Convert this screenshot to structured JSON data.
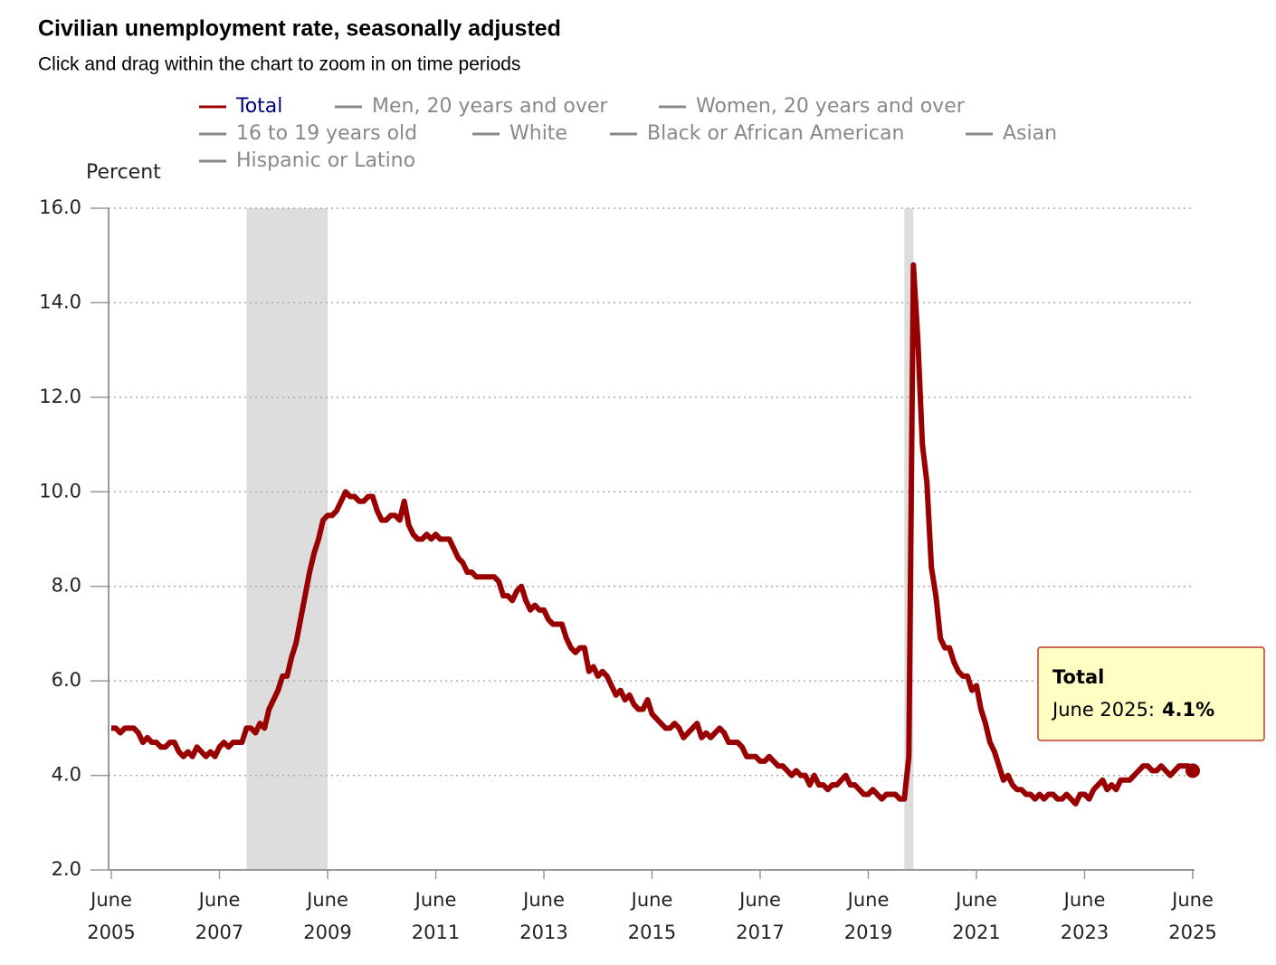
{
  "chart_data": {
    "type": "line",
    "title": "Civilian unemployment rate, seasonally adjusted",
    "subtitle": "Click and drag within the chart to zoom in on time periods",
    "y_label": "Percent",
    "x": [
      "2005-06",
      "2005-07",
      "2005-08",
      "2005-09",
      "2005-10",
      "2005-11",
      "2005-12",
      "2006-01",
      "2006-02",
      "2006-03",
      "2006-04",
      "2006-05",
      "2006-06",
      "2006-07",
      "2006-08",
      "2006-09",
      "2006-10",
      "2006-11",
      "2006-12",
      "2007-01",
      "2007-02",
      "2007-03",
      "2007-04",
      "2007-05",
      "2007-06",
      "2007-07",
      "2007-08",
      "2007-09",
      "2007-10",
      "2007-11",
      "2007-12",
      "2008-01",
      "2008-02",
      "2008-03",
      "2008-04",
      "2008-05",
      "2008-06",
      "2008-07",
      "2008-08",
      "2008-09",
      "2008-10",
      "2008-11",
      "2008-12",
      "2009-01",
      "2009-02",
      "2009-03",
      "2009-04",
      "2009-05",
      "2009-06",
      "2009-07",
      "2009-08",
      "2009-09",
      "2009-10",
      "2009-11",
      "2009-12",
      "2010-01",
      "2010-02",
      "2010-03",
      "2010-04",
      "2010-05",
      "2010-06",
      "2010-07",
      "2010-08",
      "2010-09",
      "2010-10",
      "2010-11",
      "2010-12",
      "2011-01",
      "2011-02",
      "2011-03",
      "2011-04",
      "2011-05",
      "2011-06",
      "2011-07",
      "2011-08",
      "2011-09",
      "2011-10",
      "2011-11",
      "2011-12",
      "2012-01",
      "2012-02",
      "2012-03",
      "2012-04",
      "2012-05",
      "2012-06",
      "2012-07",
      "2012-08",
      "2012-09",
      "2012-10",
      "2012-11",
      "2012-12",
      "2013-01",
      "2013-02",
      "2013-03",
      "2013-04",
      "2013-05",
      "2013-06",
      "2013-07",
      "2013-08",
      "2013-09",
      "2013-10",
      "2013-11",
      "2013-12",
      "2014-01",
      "2014-02",
      "2014-03",
      "2014-04",
      "2014-05",
      "2014-06",
      "2014-07",
      "2014-08",
      "2014-09",
      "2014-10",
      "2014-11",
      "2014-12",
      "2015-01",
      "2015-02",
      "2015-03",
      "2015-04",
      "2015-05",
      "2015-06",
      "2015-07",
      "2015-08",
      "2015-09",
      "2015-10",
      "2015-11",
      "2015-12",
      "2016-01",
      "2016-02",
      "2016-03",
      "2016-04",
      "2016-05",
      "2016-06",
      "2016-07",
      "2016-08",
      "2016-09",
      "2016-10",
      "2016-11",
      "2016-12",
      "2017-01",
      "2017-02",
      "2017-03",
      "2017-04",
      "2017-05",
      "2017-06",
      "2017-07",
      "2017-08",
      "2017-09",
      "2017-10",
      "2017-11",
      "2017-12",
      "2018-01",
      "2018-02",
      "2018-03",
      "2018-04",
      "2018-05",
      "2018-06",
      "2018-07",
      "2018-08",
      "2018-09",
      "2018-10",
      "2018-11",
      "2018-12",
      "2019-01",
      "2019-02",
      "2019-03",
      "2019-04",
      "2019-05",
      "2019-06",
      "2019-07",
      "2019-08",
      "2019-09",
      "2019-10",
      "2019-11",
      "2019-12",
      "2020-01",
      "2020-02",
      "2020-03",
      "2020-04",
      "2020-05",
      "2020-06",
      "2020-07",
      "2020-08",
      "2020-09",
      "2020-10",
      "2020-11",
      "2020-12",
      "2021-01",
      "2021-02",
      "2021-03",
      "2021-04",
      "2021-05",
      "2021-06",
      "2021-07",
      "2021-08",
      "2021-09",
      "2021-10",
      "2021-11",
      "2021-12",
      "2022-01",
      "2022-02",
      "2022-03",
      "2022-04",
      "2022-05",
      "2022-06",
      "2022-07",
      "2022-08",
      "2022-09",
      "2022-10",
      "2022-11",
      "2022-12",
      "2023-01",
      "2023-02",
      "2023-03",
      "2023-04",
      "2023-05",
      "2023-06",
      "2023-07",
      "2023-08",
      "2023-09",
      "2023-10",
      "2023-11",
      "2023-12",
      "2024-01",
      "2024-02",
      "2024-03",
      "2024-04",
      "2024-05",
      "2024-06",
      "2024-07",
      "2024-08",
      "2024-09",
      "2024-10",
      "2024-11",
      "2024-12",
      "2025-01",
      "2025-02",
      "2025-03",
      "2025-04",
      "2025-05",
      "2025-06"
    ],
    "series": [
      {
        "name": "Total",
        "color": "#990000",
        "values": [
          5.0,
          5.0,
          4.9,
          5.0,
          5.0,
          5.0,
          4.9,
          4.7,
          4.8,
          4.7,
          4.7,
          4.6,
          4.6,
          4.7,
          4.7,
          4.5,
          4.4,
          4.5,
          4.4,
          4.6,
          4.5,
          4.4,
          4.5,
          4.4,
          4.6,
          4.7,
          4.6,
          4.7,
          4.7,
          4.7,
          5.0,
          5.0,
          4.9,
          5.1,
          5.0,
          5.4,
          5.6,
          5.8,
          6.1,
          6.1,
          6.5,
          6.8,
          7.3,
          7.8,
          8.3,
          8.7,
          9.0,
          9.4,
          9.5,
          9.5,
          9.6,
          9.8,
          10.0,
          9.9,
          9.9,
          9.8,
          9.8,
          9.9,
          9.9,
          9.6,
          9.4,
          9.4,
          9.5,
          9.5,
          9.4,
          9.8,
          9.3,
          9.1,
          9.0,
          9.0,
          9.1,
          9.0,
          9.1,
          9.0,
          9.0,
          9.0,
          8.8,
          8.6,
          8.5,
          8.3,
          8.3,
          8.2,
          8.2,
          8.2,
          8.2,
          8.2,
          8.1,
          7.8,
          7.8,
          7.7,
          7.9,
          8.0,
          7.7,
          7.5,
          7.6,
          7.5,
          7.5,
          7.3,
          7.2,
          7.2,
          7.2,
          6.9,
          6.7,
          6.6,
          6.7,
          6.7,
          6.2,
          6.3,
          6.1,
          6.2,
          6.1,
          5.9,
          5.7,
          5.8,
          5.6,
          5.7,
          5.5,
          5.4,
          5.4,
          5.6,
          5.3,
          5.2,
          5.1,
          5.0,
          5.0,
          5.1,
          5.0,
          4.8,
          4.9,
          5.0,
          5.1,
          4.8,
          4.9,
          4.8,
          4.9,
          5.0,
          4.9,
          4.7,
          4.7,
          4.7,
          4.6,
          4.4,
          4.4,
          4.4,
          4.3,
          4.3,
          4.4,
          4.3,
          4.2,
          4.2,
          4.1,
          4.0,
          4.1,
          4.0,
          4.0,
          3.8,
          4.0,
          3.8,
          3.8,
          3.7,
          3.8,
          3.8,
          3.9,
          4.0,
          3.8,
          3.8,
          3.7,
          3.6,
          3.6,
          3.7,
          3.6,
          3.5,
          3.6,
          3.6,
          3.6,
          3.5,
          3.5,
          4.4,
          14.8,
          13.2,
          11.0,
          10.2,
          8.4,
          7.8,
          6.9,
          6.7,
          6.7,
          6.4,
          6.2,
          6.1,
          6.1,
          5.8,
          5.9,
          5.4,
          5.1,
          4.7,
          4.5,
          4.2,
          3.9,
          4.0,
          3.8,
          3.7,
          3.7,
          3.6,
          3.6,
          3.5,
          3.6,
          3.5,
          3.6,
          3.6,
          3.5,
          3.5,
          3.6,
          3.5,
          3.4,
          3.6,
          3.6,
          3.5,
          3.7,
          3.8,
          3.9,
          3.7,
          3.8,
          3.7,
          3.9,
          3.9,
          3.9,
          4.0,
          4.1,
          4.2,
          4.2,
          4.1,
          4.1,
          4.2,
          4.1,
          4.0,
          4.1,
          4.2,
          4.2,
          4.2,
          4.1
        ]
      }
    ],
    "hidden_series": [
      {
        "name": "Men, 20 years and over",
        "color": "#888888"
      },
      {
        "name": "Women, 20 years and over",
        "color": "#888888"
      },
      {
        "name": "16 to 19 years old",
        "color": "#888888"
      },
      {
        "name": "White",
        "color": "#888888"
      },
      {
        "name": "Black or African American",
        "color": "#888888"
      },
      {
        "name": "Asian",
        "color": "#888888"
      },
      {
        "name": "Hispanic or Latino",
        "color": "#888888"
      }
    ],
    "legend_text_color": "#000080",
    "recessions": [
      [
        "2007-12",
        "2009-06"
      ],
      [
        "2020-02",
        "2020-04"
      ]
    ],
    "recession_color": "#dddddd",
    "ylim": [
      2.0,
      16.0
    ],
    "yticks": [
      {
        "value": 2,
        "label": "2.0"
      },
      {
        "value": 4,
        "label": "4.0"
      },
      {
        "value": 6,
        "label": "6.0"
      },
      {
        "value": 8,
        "label": "8.0"
      },
      {
        "value": 10,
        "label": "10.0"
      },
      {
        "value": 12,
        "label": "12.0"
      },
      {
        "value": 14,
        "label": "14.0"
      },
      {
        "value": 16,
        "label": "16.0"
      }
    ],
    "xticks": [
      {
        "value": "2005-06",
        "label": [
          "June",
          "2005"
        ]
      },
      {
        "value": "2007-06",
        "label": [
          "June",
          "2007"
        ]
      },
      {
        "value": "2009-06",
        "label": [
          "June",
          "2009"
        ]
      },
      {
        "value": "2011-06",
        "label": [
          "June",
          "2011"
        ]
      },
      {
        "value": "2013-06",
        "label": [
          "June",
          "2013"
        ]
      },
      {
        "value": "2015-06",
        "label": [
          "June",
          "2015"
        ]
      },
      {
        "value": "2017-06",
        "label": [
          "June",
          "2017"
        ]
      },
      {
        "value": "2019-06",
        "label": [
          "June",
          "2019"
        ]
      },
      {
        "value": "2021-06",
        "label": [
          "June",
          "2021"
        ]
      },
      {
        "value": "2023-06",
        "label": [
          "June",
          "2023"
        ]
      },
      {
        "value": "2025-06",
        "label": [
          "June",
          "2025"
        ]
      }
    ],
    "grid": true,
    "tooltip": {
      "date": "June 2025:",
      "value_label": "4.1%"
    }
  }
}
